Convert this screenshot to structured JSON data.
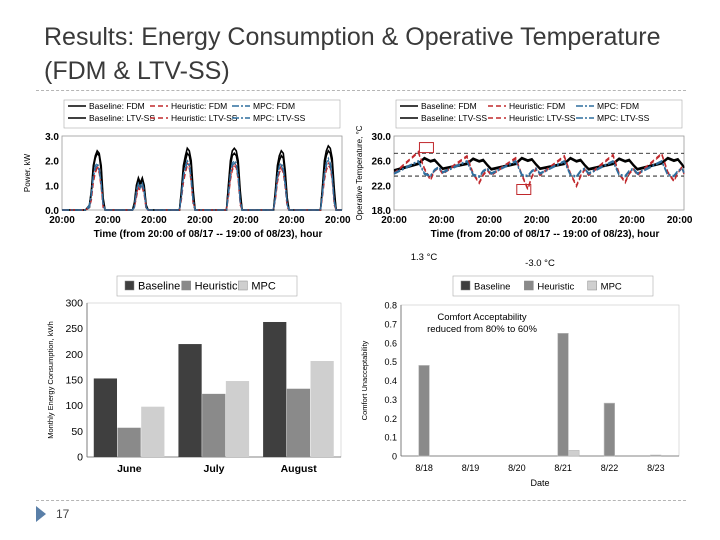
{
  "slide": {
    "title_line1": "Results: Energy Consumption & Operative Temperature",
    "title_line2": "(FDM & LTV-SS)",
    "page_number": "17"
  },
  "colors": {
    "baseline": "#000000",
    "heuristic": "#c0282c",
    "mpc": "#2f6e9e",
    "bar_baseline": "#3f3f3f",
    "bar_heuristic": "#8a8a8a",
    "bar_mpc": "#cfcfcf",
    "annotation": "#c0282c"
  },
  "chart_data": [
    {
      "id": "power",
      "type": "line",
      "title": "",
      "xlabel": "Time (from 20:00 of 08/17 -- 19:00 of 08/23), hour",
      "ylabel": "Power, kW",
      "ylim": [
        0,
        3.0
      ],
      "yticks": [
        "0.0",
        "1.0",
        "2.0",
        "3.0"
      ],
      "xticks": [
        "20:00",
        "20:00",
        "20:00",
        "20:00",
        "20:00",
        "20:00",
        "20:00"
      ],
      "x": [
        0,
        7,
        12,
        14,
        15,
        16,
        17,
        18,
        19,
        20,
        21,
        22,
        23,
        24,
        31,
        36,
        37,
        38,
        39,
        40,
        41,
        42,
        43,
        44,
        47,
        48,
        55,
        60,
        61,
        62,
        63,
        64,
        65,
        66,
        67,
        68,
        71,
        72,
        79,
        84,
        85,
        86,
        87,
        88,
        89,
        90,
        91,
        92,
        95,
        96,
        103,
        108,
        109,
        110,
        111,
        112,
        113,
        114,
        115,
        116,
        119,
        120,
        127,
        132,
        133,
        134,
        135,
        136,
        137,
        138,
        139,
        140,
        143
      ],
      "legend": [
        {
          "label": "Baseline: FDM",
          "series": "baseline_fdm"
        },
        {
          "label": "Heuristic: FDM",
          "series": "heuristic_fdm"
        },
        {
          "label": "MPC: FDM",
          "series": "mpc_fdm"
        },
        {
          "label": "Baseline: LTV-SS",
          "series": "baseline_ltv"
        },
        {
          "label": "Heuristic: LTV-SS",
          "series": "heuristic_ltv"
        },
        {
          "label": "MPC: LTV-SS",
          "series": "mpc_ltv"
        }
      ],
      "legend_position": "top",
      "series": [
        {
          "name": "Baseline: FDM",
          "style": "solid",
          "color": "baseline",
          "values": [
            0,
            0,
            0,
            0.2,
            0.8,
            1.8,
            2.2,
            2.4,
            2.3,
            1.8,
            0.5,
            0,
            0,
            0,
            0,
            0,
            0.3,
            1.0,
            1.3,
            1.1,
            1.3,
            1.0,
            0.2,
            0,
            0,
            0,
            0,
            0,
            0.8,
            1.8,
            2.2,
            2.5,
            2.4,
            2.0,
            0.8,
            0,
            0,
            0,
            0,
            0,
            1.0,
            2.0,
            2.4,
            2.5,
            2.4,
            2.0,
            0.8,
            0,
            0,
            0,
            0,
            0,
            0.8,
            1.8,
            2.2,
            2.4,
            2.3,
            1.6,
            0.5,
            0,
            0,
            0,
            0,
            0,
            0.9,
            2.0,
            2.4,
            2.6,
            2.5,
            2.1,
            0.9,
            0,
            0
          ]
        },
        {
          "name": "Baseline: LTV-SS",
          "style": "solid",
          "color": "baseline",
          "values": [
            0,
            0,
            0,
            0.1,
            0.7,
            1.7,
            2.1,
            2.3,
            2.2,
            1.6,
            0.3,
            0,
            0,
            0,
            0,
            0,
            0.2,
            0.9,
            1.2,
            1.0,
            1.2,
            0.9,
            0.1,
            0,
            0,
            0,
            0,
            0,
            0.7,
            1.6,
            2.0,
            2.3,
            2.2,
            1.8,
            0.6,
            0,
            0,
            0,
            0,
            0,
            0.9,
            1.8,
            2.2,
            2.3,
            2.2,
            1.8,
            0.6,
            0,
            0,
            0,
            0,
            0,
            0.7,
            1.6,
            2.0,
            2.2,
            2.1,
            1.4,
            0.3,
            0,
            0,
            0,
            0,
            0,
            0.8,
            1.8,
            2.2,
            2.4,
            2.3,
            1.9,
            0.7,
            0,
            0
          ]
        },
        {
          "name": "Heuristic: FDM",
          "style": "dashed",
          "color": "heuristic",
          "values": [
            0,
            0,
            0,
            0.1,
            0.5,
            1.2,
            1.6,
            1.8,
            1.6,
            1.0,
            0.2,
            0,
            0,
            0,
            0,
            0,
            0.1,
            0.6,
            1.0,
            0.9,
            1.0,
            0.7,
            0.1,
            0,
            0,
            0,
            0,
            0,
            0.5,
            1.2,
            1.6,
            1.9,
            1.8,
            1.2,
            0.3,
            0,
            0,
            0,
            0,
            0,
            0.6,
            1.3,
            1.7,
            1.9,
            1.8,
            1.3,
            0.3,
            0,
            0,
            0,
            0,
            0,
            0.5,
            1.2,
            1.6,
            1.8,
            1.6,
            1.0,
            0.2,
            0,
            0,
            0,
            0,
            0,
            0.6,
            1.3,
            1.7,
            1.9,
            1.8,
            1.3,
            0.3,
            0,
            0
          ]
        },
        {
          "name": "Heuristic: LTV-SS",
          "style": "dashed",
          "color": "heuristic",
          "values": [
            0,
            0,
            0,
            0.1,
            0.4,
            1.1,
            1.5,
            1.7,
            1.5,
            0.9,
            0.1,
            0,
            0,
            0,
            0,
            0,
            0.1,
            0.5,
            0.9,
            0.8,
            0.9,
            0.6,
            0,
            0,
            0,
            0,
            0,
            0,
            0.4,
            1.1,
            1.5,
            1.8,
            1.7,
            1.1,
            0.2,
            0,
            0,
            0,
            0,
            0,
            0.5,
            1.2,
            1.6,
            1.8,
            1.7,
            1.2,
            0.2,
            0,
            0,
            0,
            0,
            0,
            0.4,
            1.1,
            1.5,
            1.7,
            1.5,
            0.9,
            0.1,
            0,
            0,
            0,
            0,
            0,
            0.5,
            1.2,
            1.6,
            1.8,
            1.7,
            1.2,
            0.2,
            0,
            0
          ]
        },
        {
          "name": "MPC: FDM",
          "style": "dashdot",
          "color": "mpc",
          "values": [
            0,
            0,
            0,
            0.2,
            0.7,
            1.4,
            1.8,
            1.9,
            1.7,
            1.1,
            0.3,
            0,
            0,
            0,
            0,
            0,
            0.2,
            0.8,
            1.1,
            1.0,
            1.1,
            0.8,
            0.1,
            0,
            0,
            0,
            0,
            0,
            0.6,
            1.4,
            1.8,
            2.0,
            1.9,
            1.3,
            0.4,
            0,
            0,
            0,
            0,
            0,
            0.7,
            1.5,
            1.9,
            2.0,
            1.9,
            1.4,
            0.4,
            0,
            0,
            0,
            0,
            0,
            0.6,
            1.4,
            1.8,
            1.9,
            1.7,
            1.1,
            0.3,
            0,
            0,
            0,
            0,
            0,
            0.7,
            1.5,
            1.9,
            2.1,
            1.9,
            1.4,
            0.4,
            0,
            0
          ]
        },
        {
          "name": "MPC: LTV-SS",
          "style": "dashdot",
          "color": "mpc",
          "values": [
            0,
            0,
            0,
            0.1,
            0.6,
            1.3,
            1.7,
            1.8,
            1.6,
            1.0,
            0.2,
            0,
            0,
            0,
            0,
            0,
            0.1,
            0.7,
            1.0,
            0.9,
            1.0,
            0.7,
            0.1,
            0,
            0,
            0,
            0,
            0,
            0.5,
            1.3,
            1.7,
            1.9,
            1.8,
            1.2,
            0.3,
            0,
            0,
            0,
            0,
            0,
            0.6,
            1.4,
            1.8,
            1.9,
            1.8,
            1.3,
            0.3,
            0,
            0,
            0,
            0,
            0,
            0.5,
            1.3,
            1.7,
            1.8,
            1.6,
            1.0,
            0.2,
            0,
            0,
            0,
            0,
            0,
            0.6,
            1.4,
            1.8,
            2.0,
            1.8,
            1.3,
            0.3,
            0,
            0
          ]
        }
      ]
    },
    {
      "id": "temperature",
      "type": "line",
      "title": "",
      "xlabel": "Time (from 20:00 of 08/17 -- 19:00 of 08/23), hour",
      "ylabel": "Operative Temperature, °C",
      "ylim": [
        18,
        30
      ],
      "yticks": [
        "18.0",
        "22.0",
        "26.0",
        "30.0"
      ],
      "xticks": [
        "20:00",
        "20:00",
        "20:00",
        "20:00",
        "20:00",
        "20:00",
        "20:00"
      ],
      "x": [
        0,
        12,
        15,
        18,
        20,
        22,
        24,
        36,
        39,
        42,
        44,
        46,
        48,
        60,
        63,
        66,
        68,
        70,
        72,
        84,
        87,
        90,
        92,
        94,
        96,
        108,
        111,
        114,
        116,
        118,
        120,
        132,
        135,
        138,
        140,
        142,
        143
      ],
      "comfort_band": [
        23.5,
        27.2
      ],
      "series": [
        {
          "name": "Baseline: FDM",
          "style": "solid",
          "color": "baseline",
          "values": [
            24.5,
            25.6,
            26.5,
            26.0,
            26.2,
            25.5,
            24.8,
            25.6,
            26.4,
            26.0,
            26.2,
            25.4,
            24.7,
            25.6,
            26.5,
            26.1,
            26.3,
            25.5,
            24.8,
            25.6,
            26.5,
            26.0,
            26.2,
            25.4,
            24.7,
            25.6,
            26.4,
            26.0,
            26.2,
            25.4,
            24.7,
            25.7,
            26.5,
            26.1,
            26.3,
            25.5,
            25.0
          ]
        },
        {
          "name": "Baseline: LTV-SS",
          "style": "solid",
          "color": "baseline",
          "values": [
            24.3,
            25.4,
            26.3,
            25.8,
            26.0,
            25.3,
            24.6,
            25.4,
            26.2,
            25.8,
            26.0,
            25.2,
            24.5,
            25.4,
            26.3,
            25.9,
            26.1,
            25.3,
            24.6,
            25.4,
            26.3,
            25.8,
            26.0,
            25.2,
            24.5,
            25.4,
            26.2,
            25.8,
            26.0,
            25.2,
            24.5,
            25.5,
            26.3,
            25.9,
            26.1,
            25.3,
            24.8
          ]
        },
        {
          "name": "Heuristic: FDM",
          "style": "dashed",
          "color": "heuristic",
          "values": [
            24.0,
            27.5,
            24.8,
            23.0,
            24.5,
            25.0,
            24.0,
            26.8,
            24.0,
            22.5,
            23.8,
            24.6,
            23.8,
            26.5,
            23.8,
            21.5,
            23.5,
            24.8,
            23.8,
            26.8,
            24.0,
            22.0,
            23.6,
            24.7,
            23.8,
            27.0,
            24.0,
            22.6,
            24.0,
            24.8,
            23.8,
            27.2,
            24.2,
            22.8,
            24.2,
            25.0,
            24.0
          ]
        },
        {
          "name": "Heuristic: LTV-SS",
          "style": "dashed",
          "color": "heuristic",
          "values": [
            23.8,
            27.3,
            24.6,
            22.8,
            24.3,
            24.8,
            23.8,
            26.6,
            23.8,
            22.3,
            23.6,
            24.4,
            23.6,
            26.3,
            23.6,
            21.3,
            23.3,
            24.6,
            23.6,
            26.6,
            23.8,
            21.8,
            23.4,
            24.5,
            23.6,
            26.8,
            23.8,
            22.4,
            23.8,
            24.6,
            23.6,
            27.0,
            24.0,
            22.6,
            24.0,
            24.8,
            23.8
          ]
        },
        {
          "name": "MPC: FDM",
          "style": "dashdot",
          "color": "mpc",
          "values": [
            24.0,
            26.0,
            24.0,
            23.6,
            24.6,
            25.0,
            24.2,
            26.0,
            23.8,
            23.5,
            24.4,
            24.8,
            24.0,
            26.0,
            23.8,
            23.6,
            24.4,
            24.8,
            24.0,
            26.0,
            23.8,
            23.5,
            24.4,
            24.8,
            24.0,
            26.0,
            23.8,
            23.6,
            24.4,
            24.8,
            24.0,
            26.0,
            23.8,
            23.6,
            24.4,
            24.8,
            24.2
          ]
        },
        {
          "name": "MPC: LTV-SS",
          "style": "dashdot",
          "color": "mpc",
          "values": [
            23.8,
            25.8,
            23.8,
            23.4,
            24.4,
            24.8,
            24.0,
            25.8,
            23.6,
            23.3,
            24.2,
            24.6,
            23.8,
            25.8,
            23.6,
            23.4,
            24.2,
            24.6,
            23.8,
            25.8,
            23.6,
            23.3,
            24.2,
            24.6,
            23.8,
            25.8,
            23.6,
            23.4,
            24.2,
            24.6,
            23.8,
            25.8,
            23.6,
            23.4,
            24.2,
            24.6,
            24.0
          ]
        }
      ],
      "annotations": [
        {
          "label": "1.3 °C",
          "x": 16,
          "y": 27.8
        },
        {
          "label": "-3.0 °C",
          "x": 64,
          "y": 21.0
        }
      ]
    },
    {
      "id": "monthly-energy",
      "type": "bar",
      "title": "",
      "ylabel": "Monthly Energy Consumption, kWh",
      "ylim": [
        0,
        300
      ],
      "yticks": [
        "0",
        "50",
        "100",
        "150",
        "200",
        "250",
        "300"
      ],
      "categories": [
        "June",
        "July",
        "August"
      ],
      "legend_position": "top",
      "series": [
        {
          "name": "Baseline",
          "color": "bar_baseline",
          "values": [
            153,
            220,
            263
          ]
        },
        {
          "name": "Heuristic",
          "color": "bar_heuristic",
          "values": [
            57,
            123,
            133
          ]
        },
        {
          "name": "MPC",
          "color": "bar_mpc",
          "values": [
            98,
            148,
            187
          ]
        }
      ]
    },
    {
      "id": "comfort",
      "type": "bar",
      "title": "",
      "xlabel": "Date",
      "ylabel": "Comfort Unacceptability",
      "ylim": [
        0,
        0.8
      ],
      "yticks": [
        "0",
        "0.1",
        "0.2",
        "0.3",
        "0.4",
        "0.5",
        "0.6",
        "0.7",
        "0.8"
      ],
      "categories": [
        "8/18",
        "8/19",
        "8/20",
        "8/21",
        "8/22",
        "8/23"
      ],
      "legend_position": "top",
      "series": [
        {
          "name": "Baseline",
          "color": "bar_baseline",
          "values": [
            0,
            0,
            0,
            0,
            0,
            0
          ]
        },
        {
          "name": "Heuristic",
          "color": "bar_heuristic",
          "values": [
            0.48,
            0,
            0,
            0.65,
            0.28,
            0.005
          ]
        },
        {
          "name": "MPC",
          "color": "bar_mpc",
          "values": [
            0,
            0,
            0,
            0.03,
            0,
            0
          ]
        }
      ],
      "annotation": "Comfort Acceptability reduced from 80% to 60%"
    }
  ]
}
